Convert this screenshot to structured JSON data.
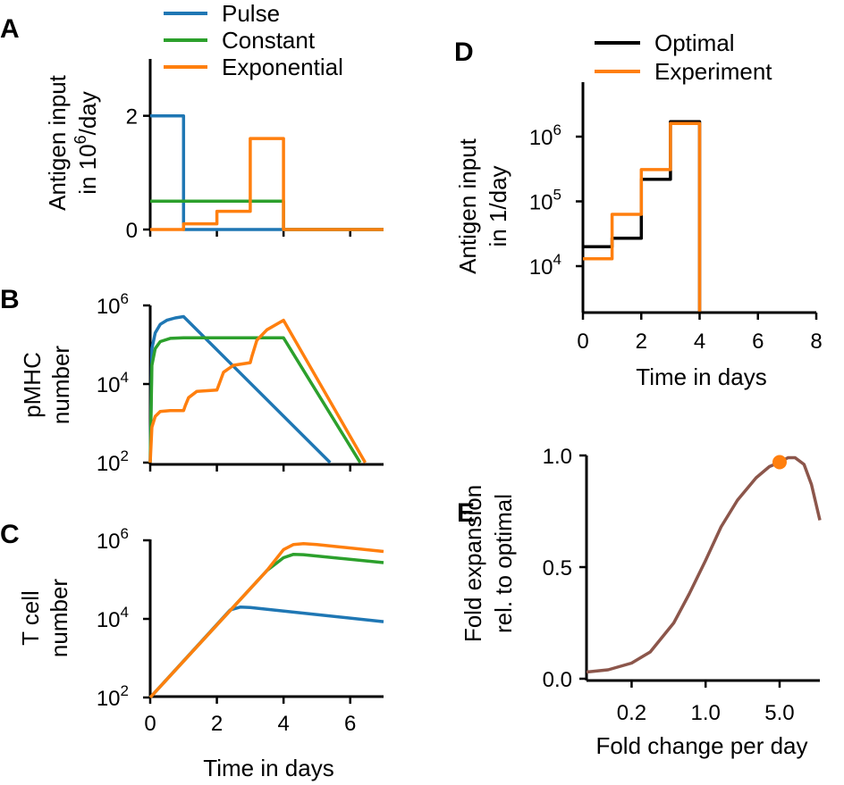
{
  "colors": {
    "pulse": "#1f77b4",
    "constant": "#2ca02c",
    "exponential": "#ff7f0e",
    "optimal": "#000000",
    "experiment": "#ff7f0e",
    "fold": "#8c564b",
    "marker": "#ff7f0e"
  },
  "chart_data": [
    {
      "panel": "A",
      "type": "line",
      "ylabel_lines": [
        "Antigen input",
        "in 10",
        "6",
        "/day"
      ],
      "ylim": [
        0,
        3
      ],
      "yticks": [
        0,
        2
      ],
      "ytick_labels": [
        "0",
        "2"
      ],
      "xlim": [
        0,
        7
      ],
      "xticks": [
        0,
        2,
        4,
        6
      ],
      "legend": [
        "Pulse",
        "Constant",
        "Exponential"
      ],
      "series": [
        {
          "name": "Pulse",
          "x": [
            0,
            1,
            1,
            7
          ],
          "y": [
            2,
            2,
            0,
            0
          ]
        },
        {
          "name": "Constant",
          "x": [
            0,
            4,
            4,
            7
          ],
          "y": [
            0.5,
            0.5,
            0,
            0
          ]
        },
        {
          "name": "Exponential",
          "x": [
            0,
            1,
            1,
            2,
            2,
            3,
            3,
            4,
            4,
            7
          ],
          "y": [
            0,
            0,
            0.1,
            0.1,
            0.32,
            0.32,
            1.6,
            1.6,
            0,
            0
          ]
        }
      ]
    },
    {
      "panel": "B",
      "type": "line",
      "yscale": "log",
      "ylabel_lines": [
        "pMHC",
        "number"
      ],
      "ylim": [
        100,
        1000000
      ],
      "yticks": [
        100,
        10000,
        1000000
      ],
      "ytick_labels": [
        "10",
        "10",
        "10"
      ],
      "ytick_exponents": [
        "2",
        "4",
        "6"
      ],
      "xlim": [
        0,
        7
      ],
      "xticks": [
        0,
        2,
        4,
        6
      ],
      "series": [
        {
          "name": "Pulse",
          "x": [
            0,
            0.05,
            0.15,
            0.3,
            0.5,
            0.75,
            1.0,
            5.4
          ],
          "y": [
            100,
            80000,
            200000,
            330000,
            420000,
            480000,
            520000,
            100
          ]
        },
        {
          "name": "Constant",
          "x": [
            0,
            0.05,
            0.15,
            0.3,
            0.6,
            1.0,
            2.0,
            4.0,
            6.3
          ],
          "y": [
            100,
            30000,
            80000,
            120000,
            145000,
            150000,
            150000,
            150000,
            100
          ]
        },
        {
          "name": "Exponential",
          "x": [
            0,
            0.05,
            0.15,
            0.3,
            0.6,
            1.0,
            1.05,
            1.15,
            1.4,
            2.0,
            2.05,
            2.2,
            2.5,
            3.0,
            3.05,
            3.2,
            3.5,
            4.0,
            6.45
          ],
          "y": [
            100,
            800,
            1500,
            2000,
            2100,
            2100,
            2800,
            4500,
            6500,
            7000,
            9000,
            20000,
            30000,
            35000,
            50000,
            130000,
            240000,
            420000,
            100
          ]
        }
      ]
    },
    {
      "panel": "C",
      "type": "line",
      "yscale": "log",
      "ylabel_lines": [
        "T cell",
        "number"
      ],
      "xlabel": "Time in days",
      "ylim": [
        100,
        1000000
      ],
      "yticks": [
        100,
        10000,
        1000000
      ],
      "ytick_labels": [
        "10",
        "10",
        "10"
      ],
      "ytick_exponents": [
        "2",
        "4",
        "6"
      ],
      "xlim": [
        0,
        7
      ],
      "xticks": [
        0,
        2,
        4,
        6
      ],
      "xtick_labels": [
        "0",
        "2",
        "4",
        "6"
      ],
      "series": [
        {
          "name": "Pulse",
          "x": [
            0,
            2.4,
            2.7,
            3.0,
            7
          ],
          "y": [
            100,
            17000,
            20000,
            19500,
            8500
          ]
        },
        {
          "name": "Constant",
          "x": [
            0,
            3.5,
            4.0,
            4.3,
            4.6,
            7
          ],
          "y": [
            100,
            170000,
            360000,
            440000,
            430000,
            270000
          ]
        },
        {
          "name": "Exponential",
          "x": [
            0,
            3.5,
            4.0,
            4.3,
            4.6,
            5.0,
            7
          ],
          "y": [
            100,
            170000,
            580000,
            780000,
            820000,
            780000,
            520000
          ]
        }
      ]
    },
    {
      "panel": "D",
      "type": "line",
      "yscale": "log",
      "ylabel_lines": [
        "Antigen input",
        "in 1/day"
      ],
      "xlabel": "Time in days",
      "ylim": [
        2000,
        8000000
      ],
      "yticks": [
        10000,
        100000,
        1000000
      ],
      "ytick_labels": [
        "10",
        "10",
        "10"
      ],
      "ytick_exponents": [
        "4",
        "5",
        "6"
      ],
      "xlim": [
        0,
        8
      ],
      "xticks": [
        0,
        2,
        4,
        6,
        8
      ],
      "xtick_labels": [
        "0",
        "2",
        "4",
        "6",
        "8"
      ],
      "legend": [
        "Optimal",
        "Experiment"
      ],
      "series": [
        {
          "name": "Optimal",
          "x": [
            0,
            1,
            1,
            2,
            2,
            3,
            3,
            4,
            4
          ],
          "y": [
            20000,
            20000,
            27000,
            27000,
            220000,
            220000,
            1700000,
            1700000,
            2000
          ]
        },
        {
          "name": "Experiment",
          "x": [
            0,
            1,
            1,
            2,
            2,
            3,
            3,
            4,
            4
          ],
          "y": [
            13000,
            13000,
            63000,
            63000,
            310000,
            310000,
            1600000,
            1600000,
            2000
          ]
        }
      ]
    },
    {
      "panel": "E",
      "type": "line",
      "xscale": "log",
      "ylabel_lines": [
        "Fold expansion",
        "rel. to optimal"
      ],
      "xlabel": "Fold change per day",
      "xlim": [
        0.075,
        12
      ],
      "ylim": [
        0,
        1
      ],
      "xticks": [
        0.2,
        1.0,
        5.0
      ],
      "xtick_labels": [
        "0.2",
        "1.0",
        "5.0"
      ],
      "yticks": [
        0,
        0.5,
        1
      ],
      "ytick_labels": [
        "0.0",
        "0.5",
        "1.0"
      ],
      "series": [
        {
          "name": "Fold",
          "x": [
            0.075,
            0.12,
            0.2,
            0.3,
            0.5,
            0.7,
            1.0,
            1.4,
            2.0,
            3.0,
            4.0,
            5.0,
            6.0,
            7.0,
            8.5,
            10.0,
            12.0
          ],
          "y": [
            0.03,
            0.04,
            0.07,
            0.12,
            0.25,
            0.38,
            0.53,
            0.68,
            0.8,
            0.9,
            0.95,
            0.97,
            0.99,
            0.99,
            0.96,
            0.87,
            0.71
          ]
        }
      ],
      "marker": {
        "x": 5.0,
        "y": 0.97
      }
    }
  ]
}
